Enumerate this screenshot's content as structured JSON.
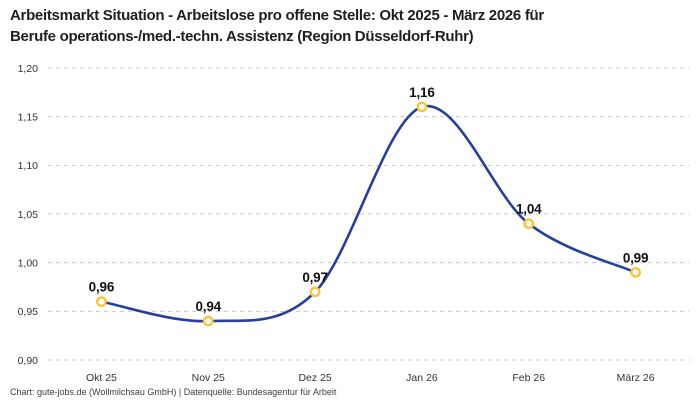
{
  "header": {
    "title_lines": [
      "Arbeitsmarkt Situation - Arbeitslose pro offene Stelle: Okt 2025 - März 2026 für",
      "Berufe operations-/med.-techn. Assistenz (Region Düsseldorf-Ruhr)"
    ]
  },
  "footer": {
    "credit": "Chart: gute-jobs.de (Wollmilchsau GmbH) | Datenquelle: Bundesagentur für Arbeit"
  },
  "chart_data": {
    "type": "line",
    "title": "Arbeitsmarkt Situation - Arbeitslose pro offene Stelle: Okt 2025 - März 2026 für Berufe operations-/med.-techn. Assistenz (Region Düsseldorf-Ruhr)",
    "categories": [
      "Okt 25",
      "Nov 25",
      "Dez 25",
      "Jan 26",
      "Feb 26",
      "März 26"
    ],
    "values": [
      0.96,
      0.94,
      0.97,
      1.16,
      1.04,
      0.99
    ],
    "value_labels": [
      "0,96",
      "0,94",
      "0,97",
      "1,16",
      "1,04",
      "0,99"
    ],
    "y_tick_values": [
      1.2,
      1.15,
      1.1,
      1.05,
      1.0,
      0.95,
      0.9
    ],
    "y_tick_labels": [
      "1,20",
      "1,15",
      "1,10",
      "1,05",
      "1,00",
      "0,95",
      "0,90"
    ],
    "ylim": [
      0.9,
      1.2
    ],
    "grid": "horizontal-dashed",
    "legend": "none",
    "line_style": "smooth-spline",
    "colors": {
      "line": "#24409c",
      "marker_stroke": "#fbc337",
      "marker_fill": "#ffffff",
      "grid": "#cacaca",
      "tick_text": "#333333",
      "data_label": "#111111",
      "title_text": "#1f1f1f",
      "footer_text": "#3d3d3d",
      "background": "#ffffff"
    }
  }
}
